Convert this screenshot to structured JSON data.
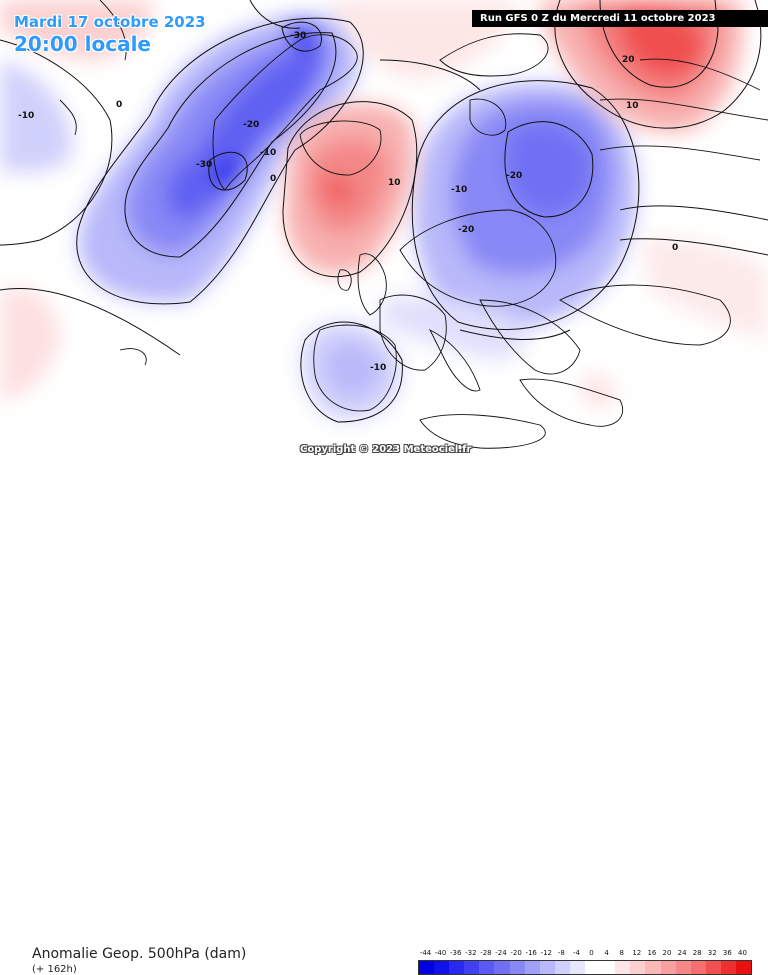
{
  "overlay": {
    "date_label": "Mardi 17 octobre 2023",
    "time_label": "20:00 locale",
    "run_label": "Run GFS 0 Z du Mercredi 11 octobre 2023",
    "copyright": "Copyright © 2023 Meteociel.fr"
  },
  "legend": {
    "title": "Anomalie Geop. 500hPa (dam)",
    "lead_time": "(+ 162h)",
    "ticks": [
      "-44",
      "-40",
      "-36",
      "-32",
      "-28",
      "-24",
      "-20",
      "-16",
      "-12",
      "-8",
      "-4",
      "0",
      "4",
      "8",
      "12",
      "16",
      "20",
      "24",
      "28",
      "32",
      "36",
      "40"
    ],
    "colors": [
      "#0000e0",
      "#1010e8",
      "#2828f0",
      "#4040f0",
      "#5a5af4",
      "#7070f4",
      "#8888f6",
      "#a0a0f8",
      "#b8b8fa",
      "#d0d0fc",
      "#e6e6fe",
      "#ffffff",
      "#ffffff",
      "#fee6e6",
      "#fcd0d0",
      "#fab8b8",
      "#f8a0a0",
      "#f68888",
      "#f47070",
      "#f05050",
      "#ec3030",
      "#e81010"
    ]
  },
  "contour_labels": {
    "m30_norway": "-30",
    "m20_norway": "-20",
    "m10_norway": "-10",
    "m30_greenland": "-30",
    "zero_a": "0",
    "zero_b": "0",
    "m10_west": "-10",
    "p10_iceland": "10",
    "m20_baltic": "-20",
    "m10_baltic": "-10",
    "m20_germany": "-20",
    "p20_russia": "20",
    "p10_russia": "10",
    "zero_east": "0",
    "m10_iberia": "-10"
  }
}
